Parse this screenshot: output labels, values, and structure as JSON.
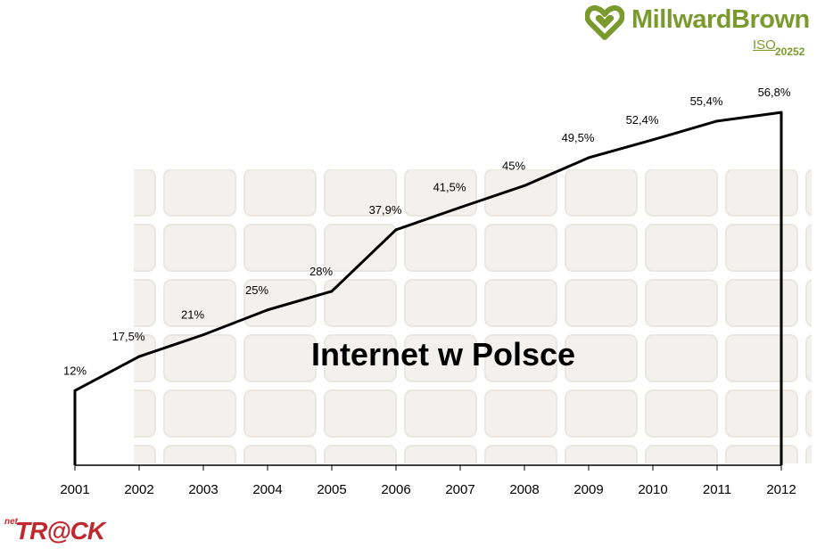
{
  "chart_data": {
    "type": "area",
    "title": "Internet w Polsce",
    "categories": [
      "2001",
      "2002",
      "2003",
      "2004",
      "2005",
      "2006",
      "2007",
      "2008",
      "2009",
      "2010",
      "2011",
      "2012"
    ],
    "values": [
      12,
      17.5,
      21,
      25,
      28,
      37.9,
      41.5,
      45,
      49.5,
      52.4,
      55.4,
      56.8
    ],
    "data_labels": [
      "12%",
      "17,5%",
      "21%",
      "25%",
      "28%",
      "37,9%",
      "41,5%",
      "45%",
      "49,5%",
      "52,4%",
      "55,4%",
      "56,8%"
    ],
    "ylim": [
      0,
      58
    ],
    "xlabel": "",
    "ylabel": "",
    "grid": false,
    "line_color": "#000000"
  },
  "logos": {
    "millward_brown": {
      "name": "MillwardBrown",
      "iso": "ISO",
      "iso_number": "20252",
      "color": "#7a9a2e"
    },
    "nettrack": {
      "prefix": "net",
      "name": "TR@CK",
      "color": "#c0282d"
    }
  }
}
